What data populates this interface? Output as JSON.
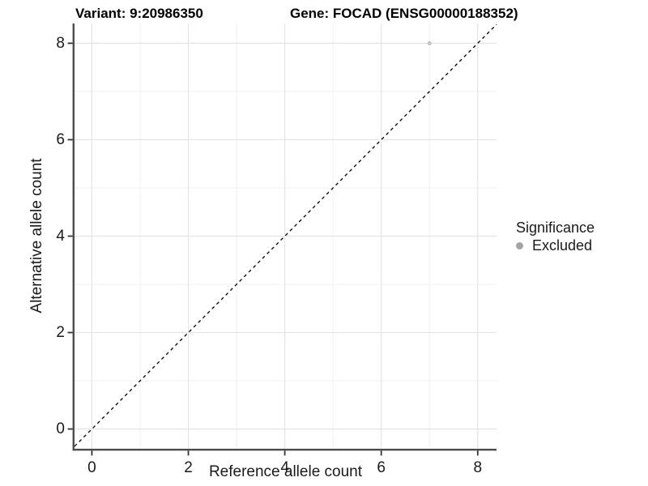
{
  "header": {
    "variant_title": "Variant: 9:20986350",
    "gene_title": "Gene: FOCAD (ENSG00000188352)"
  },
  "legend": {
    "title": "Significance",
    "items": [
      {
        "label": "Excluded",
        "marker_color": "#a4a4a4"
      }
    ]
  },
  "chart_data": {
    "type": "scatter",
    "title_left": "Variant: 9:20986350",
    "title_right": "Gene: FOCAD (ENSG00000188352)",
    "xlabel": "Reference allele count",
    "ylabel": "Alternative allele count",
    "xlim": [
      -0.36,
      8.39
    ],
    "ylim": [
      -0.41,
      8.41
    ],
    "x_ticks": [
      0,
      2,
      4,
      6,
      8
    ],
    "y_ticks": [
      0,
      2,
      4,
      6,
      8
    ],
    "x_minor_ticks": [
      1,
      3,
      5,
      7
    ],
    "y_minor_ticks": [
      1,
      3,
      5,
      7
    ],
    "grid": "major+minor",
    "legend_position": "right",
    "series": [
      {
        "name": "Excluded",
        "marker_color": "#c4c4c4",
        "points": [
          {
            "x": 7,
            "y": 8
          }
        ]
      }
    ],
    "reference_line": {
      "equation": "y = x",
      "style": "dashed",
      "color": "#000000"
    },
    "style": {
      "panel_background": "#ffffff",
      "major_grid_color": "#e4e4e4",
      "minor_grid_color": "#f0f0f0",
      "axis_line_color": "#4c4c4c",
      "tick_color": "#333333",
      "text_color": "#1a1a1a"
    }
  }
}
